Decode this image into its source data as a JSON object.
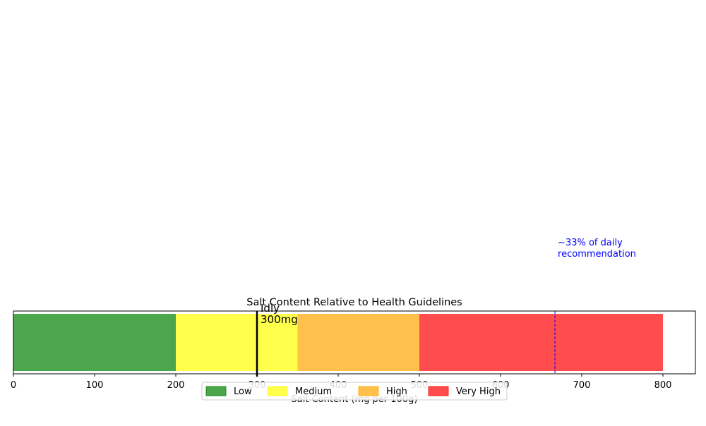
{
  "chart_data": {
    "type": "bar",
    "orientation": "horizontal",
    "title": "Salt Content Relative to Health Guidelines",
    "xlabel": "Salt Content (mg per 100g)",
    "ylabel": "",
    "xlim": [
      0,
      840
    ],
    "xticks": [
      0,
      100,
      200,
      300,
      400,
      500,
      600,
      700,
      800
    ],
    "grid": false,
    "legend_position": "bottom-center",
    "bands": [
      {
        "name": "Low",
        "start": 0,
        "end": 200,
        "color": "#008000",
        "opacity": 0.7
      },
      {
        "name": "Medium",
        "start": 200,
        "end": 350,
        "color": "#ffff00",
        "opacity": 0.7
      },
      {
        "name": "High",
        "start": 350,
        "end": 500,
        "color": "#ffa500",
        "opacity": 0.7
      },
      {
        "name": "Very High",
        "start": 500,
        "end": 800,
        "color": "#ff0000",
        "opacity": 0.7
      }
    ],
    "marker": {
      "name": "Idly",
      "value": 300,
      "label_line1": "Idly",
      "label_line2": "300mg",
      "color": "#000000"
    },
    "reference_line": {
      "value": 667,
      "label": "~33% of daily\nrecommendation",
      "color": "#0000ff"
    }
  }
}
